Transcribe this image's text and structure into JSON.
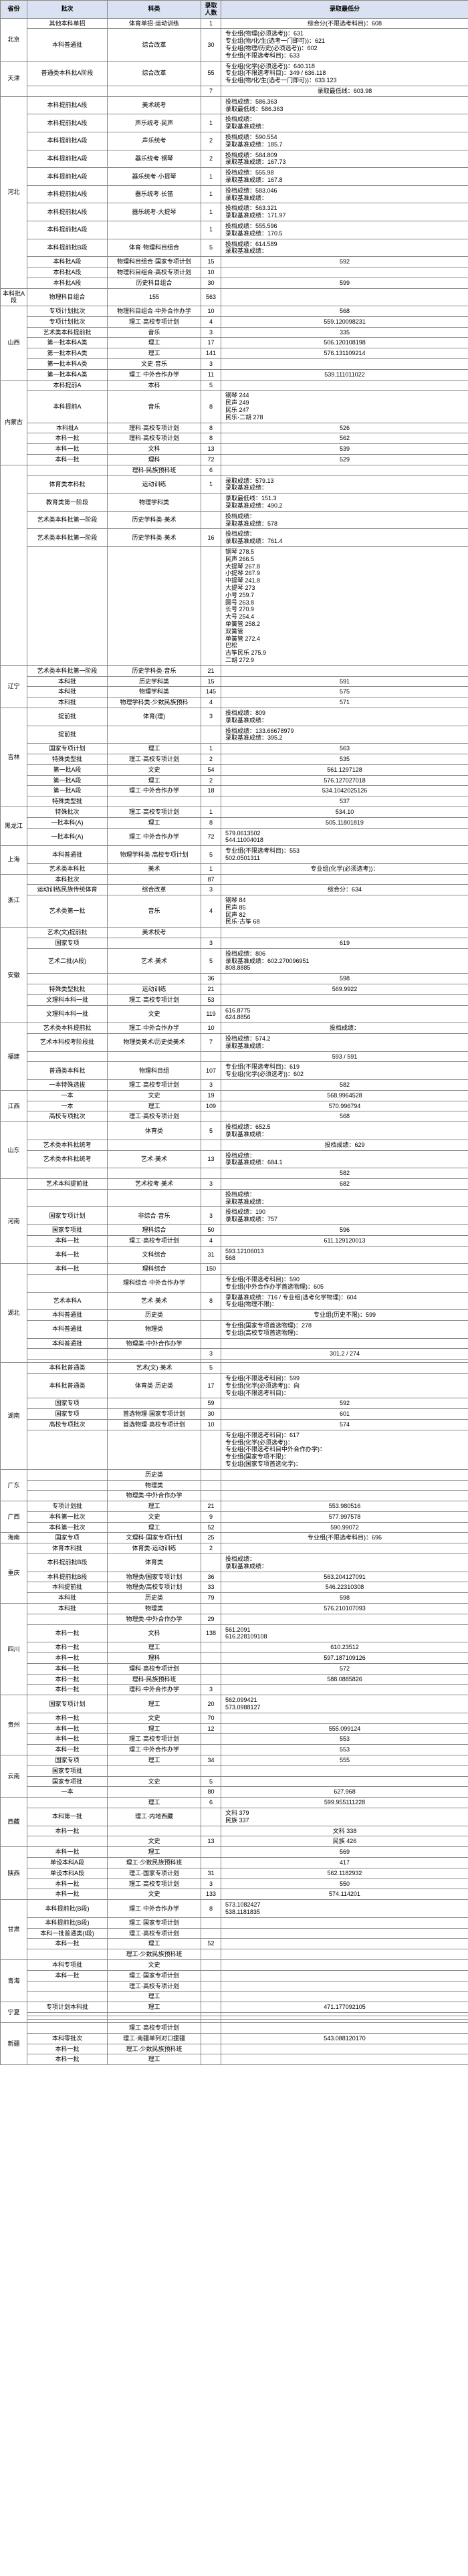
{
  "headers": [
    "省份",
    "批次",
    "科类",
    "录取人数",
    "录取最低分"
  ],
  "col_widths": [
    "40px",
    "120px",
    "140px",
    "30px",
    "370px"
  ],
  "header_bg": "#d9e1f2",
  "border_color": "#888888",
  "font_size": 9,
  "rows": [
    {
      "prov": "北京",
      "prov_span": 2,
      "batch": "其他本科单招",
      "subj": "体育单招·运动训练",
      "n": "1",
      "score": "综合分(不限选考科目)：608"
    },
    {
      "batch": "本科普通批",
      "subj": "综合改革",
      "n": "30",
      "score": "专业组(物理(必须选考))：631\n专业组(物/化/生(选考一门即可))：621\n专业组(物理/历史(必须选考))：602\n专业组(不限选考科目)：633"
    },
    {
      "prov": "天津",
      "prov_span": 2,
      "batch": "普通类本科批A阶段",
      "subj": "综合改革",
      "n": "55",
      "score": "专业组(化学(必须选考))：640.118\n专业组(不限选考科目)：349 / 636.118\n专业组(物/化/生(选考一门即可))：633.123"
    },
    {
      "batch": "",
      "subj": "",
      "n": "7",
      "score": "录取最低线：603.98"
    },
    {
      "prov": "河北",
      "prov_span": 12,
      "batch": "本科提前批A段",
      "subj": "美术统考",
      "n": "",
      "score": "投档成绩：586.363\n录取最低线：586.363"
    },
    {
      "batch": "本科提前批A段",
      "subj": "声乐统考·民声",
      "n": "1",
      "score": "投档成绩：\n录取基准成绩："
    },
    {
      "batch": "本科提前批A段",
      "subj": "声乐统考",
      "n": "2",
      "score": "投档成绩：590.554\n录取基准成绩：185.7"
    },
    {
      "batch": "本科提前批A段",
      "subj": "器乐统考·钢琴",
      "n": "2",
      "score": "投档成绩：584.809\n录取基准成绩：167.73"
    },
    {
      "batch": "本科提前批A段",
      "subj": "器乐统考·小提琴",
      "n": "1",
      "score": "投档成绩：555.98\n录取基准成绩：167.8"
    },
    {
      "batch": "本科提前批A段",
      "subj": "器乐统考·长笛",
      "n": "1",
      "score": "投档成绩：583.046\n录取基准成绩："
    },
    {
      "batch": "本科提前批A段",
      "subj": "器乐统考·大提琴",
      "n": "1",
      "score": "投档成绩：563.321\n录取基准成绩：171.97"
    },
    {
      "batch": "本科提前批A段",
      "subj": "",
      "n": "1",
      "score": "投档成绩：555.596\n录取基准成绩：170.5"
    },
    {
      "batch": "本科提前批B段",
      "subj": "体育·物理科目组合",
      "n": "5",
      "score": "投档成绩：614.589\n录取基准成绩："
    },
    {
      "batch": "本科批A段",
      "subj": "物理科目组合·国家专项计划",
      "n": "15",
      "score": "592"
    },
    {
      "batch": "本科批A段",
      "subj": "物理科目组合·高校专项计划",
      "n": "10",
      "score": ""
    },
    {
      "batch": "本科批A段",
      "subj": "历史科目组合",
      "n": "30",
      "score": "599"
    },
    {
      "batch": "本科批A段",
      "subj": "物理科目组合",
      "n": "155",
      "score": "563"
    },
    {
      "prov": "山西",
      "prov_span": 7,
      "batch": "专项计划批次",
      "subj": "物理科目组合·中外合作办学",
      "n": "10",
      "score": "568"
    },
    {
      "batch": "专项计划批次",
      "subj": "理工·高校专项计划",
      "n": "4",
      "score": "559.120098231"
    },
    {
      "batch": "艺术类本科提前批",
      "subj": "音乐",
      "n": "3",
      "score": "335"
    },
    {
      "batch": "第一批本科A类",
      "subj": "理工",
      "n": "17",
      "score": "506.120108198"
    },
    {
      "batch": "第一批本科A类",
      "subj": "理工",
      "n": "141",
      "score": "576.131109214"
    },
    {
      "batch": "第一批本科A类",
      "subj": "文史·音乐",
      "n": "3",
      "score": ""
    },
    {
      "batch": "第一批本科A类",
      "subj": "理工·中外合作办学",
      "n": "11",
      "score": "539.111011022"
    },
    {
      "prov": "内蒙古",
      "prov_span": 6,
      "batch": "本科提前A",
      "subj": "本科",
      "n": "5",
      "score": ""
    },
    {
      "batch": "本科提前A",
      "subj": "音乐",
      "n": "8",
      "score": "钢琴 244\n民声 249\n民乐 247\n民乐·二胡 278"
    },
    {
      "batch": "本科批A",
      "subj": "理科·高校专项计划",
      "n": "8",
      "score": "526"
    },
    {
      "batch": "本科一批",
      "subj": "理科·高校专项计划",
      "n": "8",
      "score": "562"
    },
    {
      "batch": "本科一批",
      "subj": "文科",
      "n": "13",
      "score": "539"
    },
    {
      "batch": "本科一批",
      "subj": "理科",
      "n": "72",
      "score": "529"
    },
    {
      "prov": "",
      "prov_span": 6,
      "batch": "",
      "subj": "理科·民族预科班",
      "n": "6",
      "score": ""
    },
    {
      "batch": "体育类本科批",
      "subj": "运动训练",
      "n": "1",
      "score": "录取成绩：579.13\n录取基准成绩："
    },
    {
      "batch": "教育类第一阶段",
      "subj": "物理学科类",
      "n": "",
      "score": "录取最低线：151.3\n录取基准成绩：490.2"
    },
    {
      "batch": "艺术类本科批第一阶段",
      "subj": "历史学科类·美术",
      "n": "",
      "score": "投档成绩：\n录取基准成绩：578"
    },
    {
      "batch": "艺术类本科批第一阶段",
      "subj": "历史学科类·美术",
      "n": "16",
      "score": "投档成绩：\n录取基准成绩：761.4"
    },
    {
      "batch": "",
      "subj": "",
      "n": "",
      "score": "钢琴 278.5\n民声 266.5\n大提琴 267.8\n小提琴 267.9\n中提琴 241.8\n大提琴 273\n小号 259.7\n圆号 263.8\n长号 270.9\n大号 254.4\n单簧管 258.2\n双簧管\n单簧管 272.4\n巴松\n古筝民乐 275.9\n二胡 272.9"
    },
    {
      "prov": "辽宁",
      "prov_span": 4,
      "batch": "艺术类本科批第一阶段",
      "subj": "历史学科类·音乐",
      "n": "21",
      "score": ""
    },
    {
      "batch": "本科批",
      "subj": "历史学科类",
      "n": "15",
      "score": "591"
    },
    {
      "batch": "本科批",
      "subj": "物理学科类",
      "n": "145",
      "score": "575"
    },
    {
      "batch": "本科批",
      "subj": "物理学科类·少数民族预科",
      "n": "4",
      "score": "571"
    },
    {
      "prov": "吉林",
      "prov_span": 8,
      "batch": "提前批",
      "subj": "体育(理)",
      "n": "3",
      "score": "投档成绩：809\n录取基准成绩："
    },
    {
      "batch": "提前批",
      "subj": "",
      "n": "",
      "score": "投档成绩：133.66678979\n录取基准成绩：395.2"
    },
    {
      "batch": "国家专项计划",
      "subj": "理工",
      "n": "1",
      "score": "563"
    },
    {
      "batch": "特殊类型批",
      "subj": "理工·高校专项计划",
      "n": "2",
      "score": "535"
    },
    {
      "batch": "第一批A段",
      "subj": "文史",
      "n": "54",
      "score": "561.1297128"
    },
    {
      "batch": "第一批A段",
      "subj": "理工",
      "n": "2",
      "score": "576.127027018"
    },
    {
      "batch": "第一批A段",
      "subj": "理工·中外合作办学",
      "n": "18",
      "score": "534.1042025126"
    },
    {
      "batch": "特殊类型批",
      "subj": "",
      "n": "",
      "score": "537"
    },
    {
      "prov": "黑龙江",
      "prov_span": 3,
      "batch": "特殊批次",
      "subj": "理工·高校专项计划",
      "n": "1",
      "score": "534.10"
    },
    {
      "batch": "一批本科(A)",
      "subj": "理工",
      "n": "8",
      "score": "505.11801819"
    },
    {
      "batch": "一批本科(A)",
      "subj": "理工·中外合作办学",
      "n": "72",
      "score": "579.0613502\n544.11004018"
    },
    {
      "prov": "上海",
      "prov_span": 2,
      "batch": "本科普通批",
      "subj": "物理学科类·高校专项计划",
      "n": "5",
      "score": "专业组(不限选考科目)：553\n502.0501311"
    },
    {
      "batch": "艺术类本科批",
      "subj": "美术",
      "n": "1",
      "score": "专业组(化学(必须选考))："
    },
    {
      "prov": "浙江",
      "prov_span": 3,
      "batch": "本科批次",
      "subj": "",
      "n": "87",
      "score": ""
    },
    {
      "batch": "运动训练民族传统体育",
      "subj": "综合改革",
      "n": "3",
      "score": "综合分：634"
    },
    {
      "batch": "艺术类第一批",
      "subj": "音乐",
      "n": "4",
      "score": "钢琴 84\n民声 85\n民声 82\n民乐·古筝 68"
    },
    {
      "prov": "安徽",
      "prov_span": 7,
      "batch": "艺术(文)提前批",
      "subj": "美术校考",
      "n": "",
      "score": ""
    },
    {
      "batch": "国家专项",
      "subj": "",
      "n": "3",
      "score": "619"
    },
    {
      "batch": "艺术二批(A段)",
      "subj": "艺术·美术",
      "n": "5",
      "score": "投档成绩：806\n录取基准成绩：602.270096951\n808.8885"
    },
    {
      "batch": "",
      "subj": "",
      "n": "36",
      "score": "598"
    },
    {
      "batch": "特殊类型批批",
      "subj": "运动训练",
      "n": "21",
      "score": "569.9922"
    },
    {
      "batch": "文理科本科一批",
      "subj": "理工·高校专项计划",
      "n": "53",
      "score": ""
    },
    {
      "batch": "文理科本科一批",
      "subj": "文史",
      "n": "119",
      "score": "616.8775\n624.8856"
    },
    {
      "prov": "福建",
      "prov_span": 5,
      "batch": "艺术类本科提前批",
      "subj": "理工·中外合作办学",
      "n": "10",
      "score": "投档成绩："
    },
    {
      "batch": "艺术本科校考阶段批",
      "subj": "物理类美术/历史类美术",
      "n": "7",
      "score": "投档成绩：574.2\n录取基准成绩："
    },
    {
      "batch": "",
      "subj": "",
      "n": "",
      "score": "593 / 591"
    },
    {
      "batch": "普通类本科批",
      "subj": "物理科目组",
      "n": "107",
      "score": "专业组(不限选考科目)：619\n专业组(化学(必须选考))：602"
    },
    {
      "batch": "一本特殊选拔",
      "subj": "理工·高校专项计划",
      "n": "3",
      "score": "582"
    },
    {
      "prov": "江西",
      "prov_span": 3,
      "batch": "一本",
      "subj": "文史",
      "n": "19",
      "score": "568.9964528"
    },
    {
      "batch": "一本",
      "subj": "理工",
      "n": "109",
      "score": "570.996794"
    },
    {
      "batch": "高校专项批次",
      "subj": "理工·高校专项计划",
      "n": "",
      "score": "568"
    },
    {
      "prov": "山东",
      "prov_span": 4,
      "batch": "",
      "subj": "体育类",
      "n": "5",
      "score": "投档成绩：652.5\n录取基准成绩："
    },
    {
      "batch": "艺术类本科批统考",
      "subj": "",
      "n": "",
      "score": "投档成绩：629"
    },
    {
      "batch": "艺术类本科批统考",
      "subj": "艺术·美术",
      "n": "13",
      "score": "投档成绩：\n录取基准成绩：684.1"
    },
    {
      "batch": "",
      "subj": "",
      "n": "",
      "score": "582"
    },
    {
      "prov": "河南",
      "prov_span": 6,
      "batch": "艺术本科提前批",
      "subj": "艺术校考·美术",
      "n": "3",
      "score": "682"
    },
    {
      "batch": "",
      "subj": "",
      "n": "",
      "score": "投档成绩：\n录取基准成绩："
    },
    {
      "batch": "国家专项计划",
      "subj": "非综合·音乐",
      "n": "3",
      "score": "投档成绩：190\n录取基准成绩：757"
    },
    {
      "batch": "国家专项批",
      "subj": "理科综合",
      "n": "50",
      "score": "596"
    },
    {
      "batch": "本科一批",
      "subj": "理工·高校专项计划",
      "n": "4",
      "score": "611.129120013"
    },
    {
      "batch": "本科一批",
      "subj": "文科综合",
      "n": "31",
      "score": "593.12106013\n568"
    },
    {
      "prov": "湖北",
      "prov_span": 8,
      "batch": "本科一批",
      "subj": "理科综合",
      "n": "150",
      "score": ""
    },
    {
      "batch": "",
      "subj": "理科综合·中外合作办学",
      "n": "",
      "score": "专业组(不限选考科目)：590\n专业组(中外合作办学首选物理)：605"
    },
    {
      "batch": "艺术本科A",
      "subj": "艺术·美术",
      "n": "8",
      "score": "录取基准成绩：716 / 专业组(选考化学物理)：604\n专业组(物理不限)："
    },
    {
      "batch": "本科普通批",
      "subj": "历史类",
      "n": "",
      "score": "专业组(历史不限)：599"
    },
    {
      "batch": "本科普通批",
      "subj": "物理类",
      "n": "",
      "score": "专业组(国家专项首选物理)：278\n专业组(高校专项首选物理)："
    },
    {
      "batch": "本科普通批",
      "subj": "物理类·中外合作办学",
      "n": "",
      "score": ""
    },
    {
      "batch": "",
      "subj": "",
      "n": "3",
      "score": "301.2 / 274"
    },
    {
      "batch": "",
      "subj": "",
      "n": "",
      "score": ""
    },
    {
      "prov": "湖南",
      "prov_span": 6,
      "batch": "本科批普通类",
      "subj": "艺术(文)·美术",
      "n": "5",
      "score": ""
    },
    {
      "batch": "本科批普通类",
      "subj": "体育类·历史类",
      "n": "17",
      "score": "专业组(不限选考科目)：599\n专业组(化学(必须选考))：向\n专业组(不限选考科目)："
    },
    {
      "batch": "国家专项",
      "subj": "",
      "n": "59",
      "score": "592"
    },
    {
      "batch": "国家专项",
      "subj": "首选物理·国家专项计划",
      "n": "30",
      "score": "601"
    },
    {
      "batch": "高校专项批次",
      "subj": "首选物理·高校专项计划",
      "n": "10",
      "score": "574"
    },
    {
      "batch": "",
      "subj": "",
      "n": "",
      "score": "专业组(不限选考科目)：617\n专业组(化学(必须选考))：\n专业组(不限选考科目中外合作办学)：\n专业组(国家专项不限)：\n专业组(国家专项首选化学)："
    },
    {
      "prov": "广东",
      "prov_span": 3,
      "batch": "",
      "subj": "历史类",
      "n": "",
      "score": ""
    },
    {
      "batch": "",
      "subj": "物理类",
      "n": "",
      "score": ""
    },
    {
      "batch": "",
      "subj": "物理类·中外合作办学",
      "n": "",
      "score": ""
    },
    {
      "prov": "广西",
      "prov_span": 3,
      "batch": "专项计划批",
      "subj": "理工",
      "n": "21",
      "score": "553.980516"
    },
    {
      "batch": "本科第一批次",
      "subj": "文史",
      "n": "9",
      "score": "577.997578"
    },
    {
      "batch": "本科第一批次",
      "subj": "理工",
      "n": "52",
      "score": "590.99072"
    },
    {
      "prov": "海南",
      "prov_span": 1,
      "batch": "国家专项",
      "subj": "文理科·国家专项计划",
      "n": "25",
      "score": "专业组(不限选考科目)：696"
    },
    {
      "prov": "重庆",
      "prov_span": 5,
      "batch": "体育本科批",
      "subj": "体育类·运动训练",
      "n": "2",
      "score": ""
    },
    {
      "batch": "本科提前批B段",
      "subj": "体育类",
      "n": "",
      "score": "投档成绩：\n录取基准成绩："
    },
    {
      "batch": "本科提前批B段",
      "subj": "物理类/国家专项计划",
      "n": "36",
      "score": "563.204127091"
    },
    {
      "batch": "本科提前批",
      "subj": "物理类/高校专项计划",
      "n": "33",
      "score": "546.22310308"
    },
    {
      "batch": "本科批",
      "subj": "历史类",
      "n": "79",
      "score": "598"
    },
    {
      "prov": "四川",
      "prov_span": 8,
      "batch": "本科批",
      "subj": "物理类",
      "n": "",
      "score": "576.210107093"
    },
    {
      "batch": "",
      "subj": "物理类·中外合作办学",
      "n": "29",
      "score": ""
    },
    {
      "batch": "本科一批",
      "subj": "文科",
      "n": "138",
      "score": "561.2091\n616.228109108"
    },
    {
      "batch": "本科一批",
      "subj": "理工",
      "n": "",
      "score": "610.23512"
    },
    {
      "batch": "本科一批",
      "subj": "理科",
      "n": "",
      "score": "597.187109126"
    },
    {
      "batch": "本科一批",
      "subj": "理科·高校专项计划",
      "n": "",
      "score": "572"
    },
    {
      "batch": "本科一批",
      "subj": "理科·民族预科班",
      "n": "",
      "score": "588.0885826"
    },
    {
      "batch": "本科一批",
      "subj": "理科·中外合作办学",
      "n": "3",
      "score": ""
    },
    {
      "prov": "贵州",
      "prov_span": 5,
      "batch": "国家专项计划",
      "subj": "理工",
      "n": "20",
      "score": "562.099421\n573.0988127"
    },
    {
      "batch": "本科一批",
      "subj": "文史",
      "n": "70",
      "score": ""
    },
    {
      "batch": "本科一批",
      "subj": "理工",
      "n": "12",
      "score": "555.099124"
    },
    {
      "batch": "本科一批",
      "subj": "理工·高校专项计划",
      "n": "",
      "score": "553"
    },
    {
      "batch": "本科一批",
      "subj": "理工·中外合作办学",
      "n": "",
      "score": "553"
    },
    {
      "prov": "云南",
      "prov_span": 4,
      "batch": "国家专项",
      "subj": "理工",
      "n": "34",
      "score": "555"
    },
    {
      "batch": "国家专项批",
      "subj": "",
      "n": "",
      "score": ""
    },
    {
      "batch": "国家专项批",
      "subj": "文史",
      "n": "5",
      "score": ""
    },
    {
      "batch": "一本",
      "subj": "",
      "n": "80",
      "score": "627.968"
    },
    {
      "prov": "西藏",
      "prov_span": 4,
      "batch": "",
      "subj": "理工",
      "n": "6",
      "score": "599.955111228"
    },
    {
      "batch": "本科第一批",
      "subj": "理工·内地西藏",
      "n": "",
      "score": "文科 379\n民族 337"
    },
    {
      "batch": "本科一批",
      "subj": "",
      "n": "",
      "score": "文科 338"
    },
    {
      "batch": "",
      "subj": "文史",
      "n": "13",
      "score": "民族 426"
    },
    {
      "prov": "陕西",
      "prov_span": 5,
      "batch": "本科一批",
      "subj": "理工",
      "n": "",
      "score": "569"
    },
    {
      "batch": "单设本科A段",
      "subj": "理工·少数民族预科班",
      "n": "",
      "score": "417"
    },
    {
      "batch": "单设本科A段",
      "subj": "理工·国家专项计划",
      "n": "31",
      "score": "562.1182932"
    },
    {
      "batch": "本科一批",
      "subj": "理工·高校专项计划",
      "n": "3",
      "score": "550"
    },
    {
      "batch": "本科一批",
      "subj": "文史",
      "n": "133",
      "score": "574.114201"
    },
    {
      "prov": "甘肃",
      "prov_span": 5,
      "batch": "本科提前批(B段)",
      "subj": "理工·中外合作办学",
      "n": "8",
      "score": "573.1082427\n538.1181835"
    },
    {
      "batch": "本科提前批(B段)",
      "subj": "理工·国家专项计划",
      "n": "",
      "score": ""
    },
    {
      "batch": "本科一批普通类(I段)",
      "subj": "理工·高校专项计划",
      "n": "",
      "score": ""
    },
    {
      "batch": "本科一批",
      "subj": "理工",
      "n": "52",
      "score": ""
    },
    {
      "batch": "",
      "subj": "理工·少数民族预科班",
      "n": "",
      "score": ""
    },
    {
      "prov": "青海",
      "prov_span": 4,
      "batch": "本科专项批",
      "subj": "文史",
      "n": "",
      "score": ""
    },
    {
      "batch": "本科一批",
      "subj": "理工·国家专项计划",
      "n": "",
      "score": ""
    },
    {
      "batch": "",
      "subj": "理工·高校专项计划",
      "n": "",
      "score": ""
    },
    {
      "batch": "",
      "subj": "理工",
      "n": "",
      "score": ""
    },
    {
      "prov": "宁夏",
      "prov_span": 4,
      "batch": "专项计划本科批",
      "subj": "理工",
      "n": "",
      "score": "471.177092105"
    },
    {
      "batch": "",
      "subj": "",
      "n": "",
      "score": ""
    },
    {
      "batch": "",
      "subj": "",
      "n": "",
      "score": ""
    },
    {
      "batch": "",
      "subj": "",
      "n": "",
      "score": ""
    },
    {
      "prov": "新疆",
      "prov_span": 4,
      "batch": "",
      "subj": "理工·高校专项计划",
      "n": "",
      "score": ""
    },
    {
      "batch": "本科零批次",
      "subj": "理工·南疆单列对口援疆",
      "n": "",
      "score": "543.088120170"
    },
    {
      "batch": "本科一批",
      "subj": "理工·少数民族预科班",
      "n": "",
      "score": ""
    },
    {
      "batch": "本科一批",
      "subj": "理工",
      "n": "",
      "score": ""
    }
  ]
}
